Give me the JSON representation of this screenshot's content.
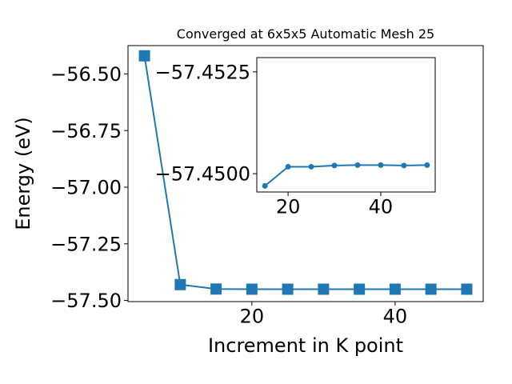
{
  "colors": {
    "series": "#1f77b4",
    "axis": "#000000",
    "background": "#ffffff"
  },
  "chart_data": [
    {
      "type": "line",
      "title": "Converged at 6x5x5 Automatic Mesh 25",
      "xlabel": "Increment in K point",
      "ylabel": "Energy (eV)",
      "xlim": [
        2.7,
        52.3
      ],
      "ylim": [
        -57.505,
        -56.375
      ],
      "xticks": [
        20,
        40
      ],
      "xtick_labels": [
        "20",
        "40"
      ],
      "yticks": [
        -57.5,
        -57.25,
        -57.0,
        -56.75,
        -56.5
      ],
      "ytick_labels": [
        "−57.50",
        "−57.25",
        "−57.00",
        "−56.75",
        "−56.50"
      ],
      "marker": "square",
      "grid": false,
      "series": [
        {
          "x": [
            5,
            10,
            15,
            20,
            25,
            30,
            35,
            40,
            45,
            50
          ],
          "y": [
            -56.42,
            -57.43,
            -57.4495,
            -57.4502,
            -57.4502,
            -57.4502,
            -57.4502,
            -57.4502,
            -57.4502,
            -57.4502
          ]
        }
      ]
    },
    {
      "type": "line",
      "title": "",
      "xlabel": "",
      "ylabel": "",
      "xlim": [
        13.25,
        51.75
      ],
      "ylim": [
        -57.44955,
        -57.45285
      ],
      "xticks": [
        20,
        40
      ],
      "xtick_labels": [
        "20",
        "40"
      ],
      "yticks": [
        -57.45,
        -57.4525
      ],
      "ytick_labels": [
        "−57.4500",
        "−57.4525"
      ],
      "marker": "circle",
      "grid": false,
      "series": [
        {
          "x": [
            15,
            20,
            25,
            30,
            35,
            40,
            45,
            50
          ],
          "y": [
            -57.4497,
            -57.45017,
            -57.45017,
            -57.4502,
            -57.45021,
            -57.45021,
            -57.4502,
            -57.45021
          ]
        }
      ]
    }
  ]
}
